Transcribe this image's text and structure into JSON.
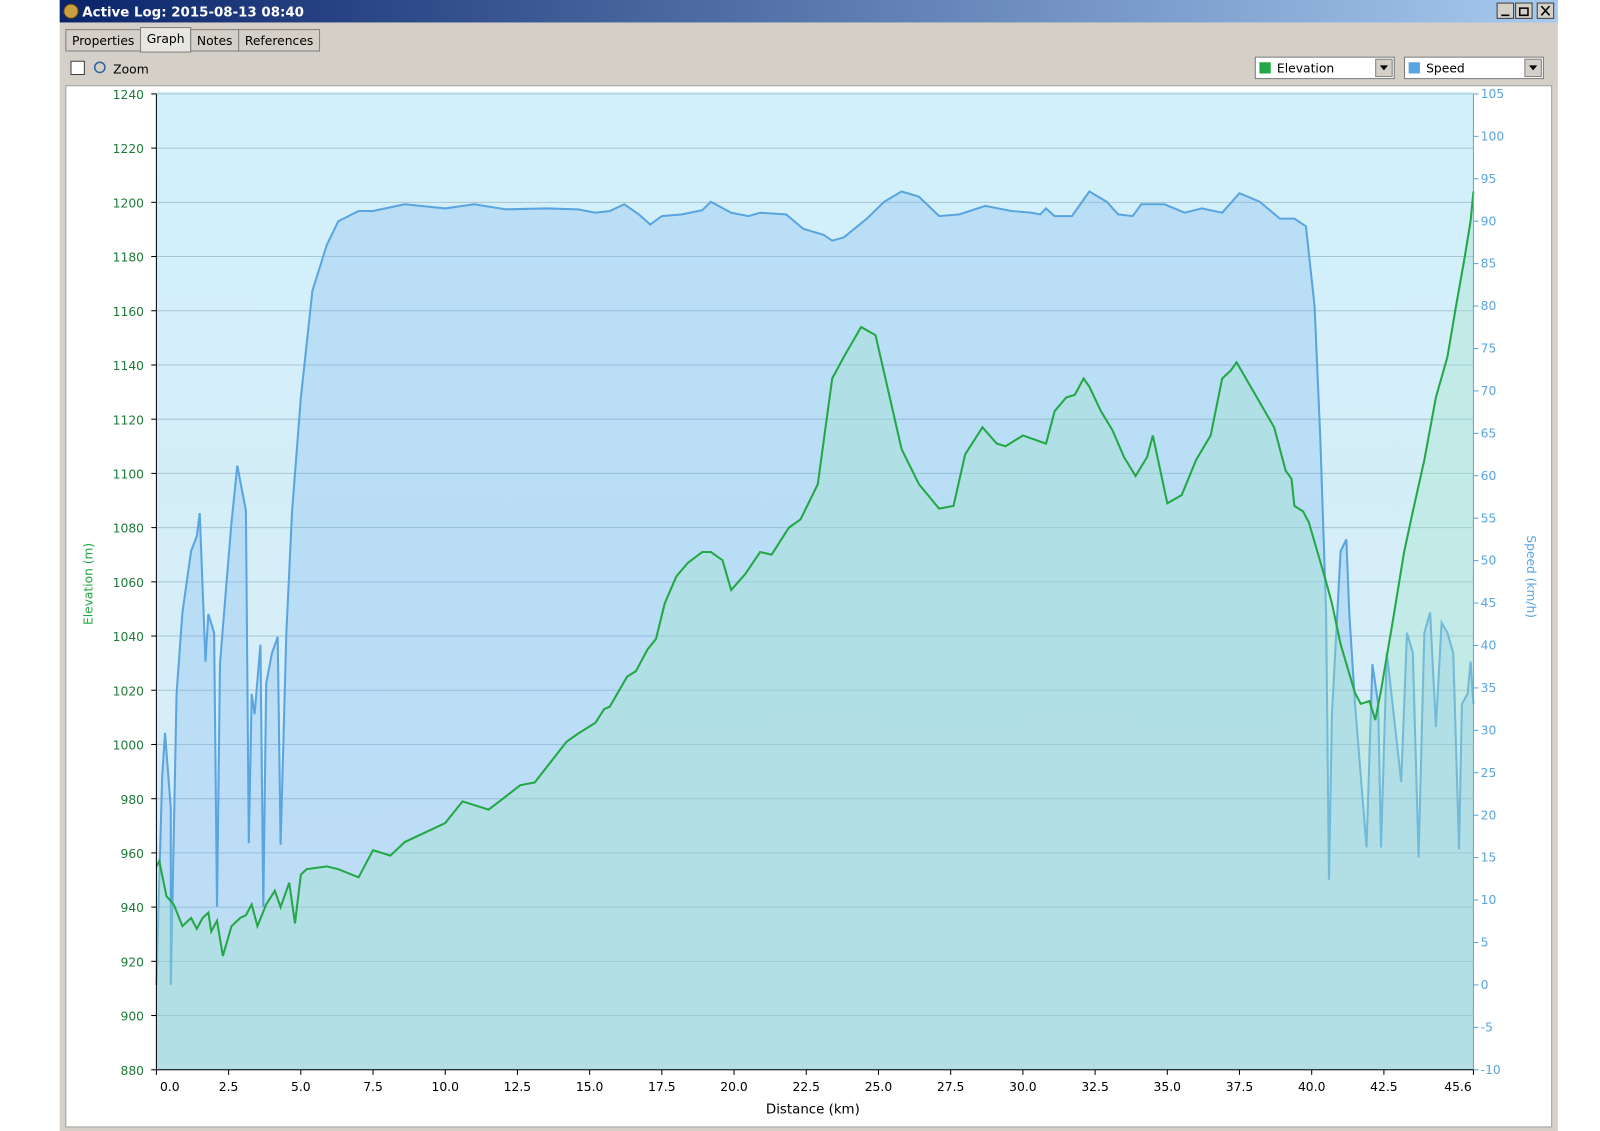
{
  "window": {
    "title": "Active Log: 2015-08-13 08:40"
  },
  "tabs": [
    "Properties",
    "Graph",
    "Notes",
    "References"
  ],
  "toolbar": {
    "zoom": "Zoom"
  },
  "chart_data": {
    "type": "area",
    "x_label": "Distance  (km)",
    "y_label": "Elevation (m)",
    "y2_label": "Speed (km/h)",
    "grid": true,
    "xlim": [
      0,
      45.6
    ],
    "xticks": [
      {
        "value": 0,
        "label": "0.0"
      },
      2.5,
      {
        "value": 5,
        "label": "5.0"
      },
      7.5,
      {
        "value": 10,
        "label": "10.0"
      },
      12.5,
      {
        "value": 15,
        "label": "15.0"
      },
      17.5,
      {
        "value": 20,
        "label": "20.0"
      },
      22.5,
      {
        "value": 25,
        "label": "25.0"
      },
      27.5,
      {
        "value": 30,
        "label": "30.0"
      },
      32.5,
      {
        "value": 35,
        "label": "35.0"
      },
      37.5,
      {
        "value": 40,
        "label": "40.0"
      },
      42.5,
      45.6
    ],
    "ylim": [
      880,
      1240
    ],
    "yticks": [
      880,
      900,
      920,
      940,
      960,
      980,
      1000,
      1020,
      1040,
      1060,
      1080,
      1100,
      1120,
      1140,
      1160,
      1180,
      1200,
      1220,
      1240
    ],
    "y2lim": [
      -10,
      105
    ],
    "y2ticks": [
      -10,
      -5,
      0,
      5,
      10,
      15,
      20,
      25,
      30,
      35,
      40,
      45,
      50,
      55,
      60,
      65,
      70,
      75,
      80,
      85,
      90,
      95,
      100,
      105
    ],
    "series": [
      {
        "name": "Elevation",
        "color": "#22a844",
        "x": [
          0,
          0.1,
          0.35,
          0.6,
          0.9,
          1.2,
          1.4,
          1.6,
          1.8,
          1.9,
          2.1,
          2.3,
          2.6,
          2.9,
          3.1,
          3.3,
          3.5,
          3.8,
          4.1,
          4.3,
          4.6,
          4.8,
          5.0,
          5.2,
          5.9,
          6.3,
          7.0,
          7.5,
          8.1,
          8.6,
          10.0,
          10.6,
          11.5,
          12.0,
          12.6,
          13.1,
          14.2,
          14.6,
          15.2,
          15.5,
          15.7,
          16.3,
          16.6,
          17.0,
          17.3,
          17.6,
          18.0,
          18.4,
          18.9,
          19.2,
          19.6,
          19.9,
          20.4,
          20.9,
          21.3,
          21.9,
          22.3,
          22.9,
          23.4,
          23.8,
          24.4,
          24.9,
          25.5,
          25.8,
          26.4,
          27.1,
          27.6,
          28.0,
          28.6,
          29.1,
          29.4,
          30.0,
          30.8,
          31.1,
          31.5,
          31.8,
          32.1,
          32.3,
          32.7,
          33.1,
          33.5,
          33.9,
          34.3,
          34.5,
          35.0,
          35.5,
          36.0,
          36.5,
          36.9,
          37.2,
          37.4,
          38.7,
          39.1,
          39.3,
          39.4,
          39.7,
          39.9,
          40.2,
          40.5,
          40.7,
          41.0,
          41.5,
          41.7,
          42.0,
          42.2,
          42.4,
          42.8,
          43.2,
          43.5,
          43.9,
          44.3,
          44.7,
          45.0,
          45.3,
          45.5,
          45.6
        ],
        "values": [
          955,
          957,
          944,
          941,
          933,
          936,
          932,
          936,
          938,
          931,
          935,
          922,
          933,
          936,
          937,
          941,
          933,
          941,
          946,
          940,
          949,
          934,
          952,
          954,
          955,
          954,
          951,
          961,
          959,
          964,
          971,
          979,
          976,
          980,
          985,
          986,
          1001,
          1004,
          1008,
          1013,
          1014,
          1025,
          1027,
          1035,
          1039,
          1052,
          1062,
          1067,
          1071,
          1071,
          1068,
          1057,
          1063,
          1071,
          1070,
          1080,
          1083,
          1096,
          1135,
          1143,
          1154,
          1151,
          1123,
          1109,
          1096,
          1087,
          1088,
          1107,
          1117,
          1111,
          1110,
          1114,
          1111,
          1123,
          1128,
          1129,
          1135,
          1132,
          1123,
          1116,
          1106,
          1099,
          1106,
          1114,
          1089,
          1092,
          1105,
          1114,
          1135,
          1138,
          1141,
          1117,
          1101,
          1098,
          1088,
          1086,
          1082,
          1071,
          1060,
          1052,
          1037,
          1019,
          1015,
          1016,
          1009,
          1020,
          1045,
          1071,
          1086,
          1105,
          1128,
          1143,
          1162,
          1180,
          1193,
          1204
        ]
      },
      {
        "name": "Speed",
        "color": "#5aa5e0",
        "axis": "y2",
        "x": [
          0,
          0.2,
          0.3,
          0.5,
          0.5,
          0.7,
          0.9,
          1.2,
          1.4,
          1.5,
          1.7,
          1.8,
          2.0,
          2.1,
          2.2,
          2.4,
          2.6,
          2.8,
          3.1,
          3.2,
          3.3,
          3.4,
          3.6,
          3.7,
          3.8,
          4.0,
          4.2,
          4.3,
          4.5,
          4.7,
          5.0,
          5.4,
          5.9,
          6.3,
          7.0,
          7.5,
          8.6,
          10.0,
          11.0,
          12.1,
          13.5,
          14.6,
          15.2,
          15.7,
          16.2,
          16.7,
          17.1,
          17.5,
          18.2,
          18.9,
          19.2,
          19.9,
          20.5,
          20.9,
          21.8,
          22.4,
          23.1,
          23.4,
          23.8,
          24.6,
          25.2,
          25.8,
          26.4,
          27.1,
          27.8,
          28.7,
          29.6,
          30.3,
          30.6,
          30.8,
          31.1,
          31.7,
          32.3,
          32.9,
          33.3,
          33.8,
          34.1,
          34.9,
          35.6,
          36.2,
          36.9,
          37.5,
          38.2,
          38.9,
          39.4,
          39.8,
          40.1,
          40.3,
          40.5,
          40.6,
          40.7,
          41.0,
          41.2,
          41.3,
          41.5,
          41.7,
          41.9,
          42.1,
          42.3,
          42.4,
          42.6,
          42.8,
          43.1,
          43.3,
          43.5,
          43.7,
          43.9,
          44.1,
          44.3,
          44.5,
          44.7,
          44.9,
          45.1,
          45.2,
          45.4,
          45.5,
          45.6
        ],
        "values": [
          0,
          24.6,
          29.7,
          20.8,
          0,
          34.3,
          43.9,
          51.1,
          52.9,
          55.6,
          38.1,
          43.7,
          41.5,
          9.2,
          37.8,
          46.3,
          54.5,
          61.2,
          55.9,
          16.7,
          34.3,
          31.9,
          40.1,
          9.2,
          35.5,
          39.1,
          41.0,
          16.5,
          41.5,
          55.9,
          69.2,
          81.8,
          87.2,
          90.0,
          91.2,
          91.2,
          92.0,
          91.5,
          92.0,
          91.4,
          91.5,
          91.4,
          91.0,
          91.2,
          92.0,
          90.8,
          89.6,
          90.6,
          90.8,
          91.3,
          92.3,
          91.0,
          90.6,
          91.0,
          90.8,
          89.1,
          88.4,
          87.7,
          88.1,
          90.3,
          92.3,
          93.5,
          92.9,
          90.6,
          90.8,
          91.8,
          91.2,
          91.0,
          90.8,
          91.5,
          90.6,
          90.6,
          93.5,
          92.3,
          90.8,
          90.6,
          92.0,
          92.0,
          91.0,
          91.5,
          91.0,
          93.3,
          92.3,
          90.3,
          90.3,
          89.4,
          80.0,
          64.3,
          43.9,
          12.4,
          31.9,
          51.1,
          52.5,
          43.9,
          33.1,
          24.6,
          16.2,
          37.8,
          33.1,
          16.2,
          39.1,
          33.1,
          23.9,
          41.5,
          39.1,
          15.0,
          41.5,
          43.9,
          30.4,
          42.7,
          41.5,
          39.1,
          16.0,
          33.1,
          34.3,
          38.1,
          33.1
        ]
      }
    ]
  }
}
